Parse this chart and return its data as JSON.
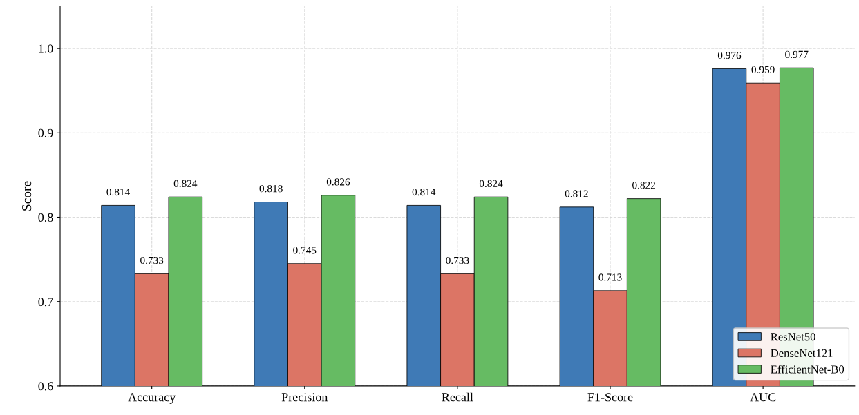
{
  "chart_data": {
    "type": "bar",
    "ylabel": "Score",
    "categories": [
      "Accuracy",
      "Precision",
      "Recall",
      "F1-Score",
      "AUC"
    ],
    "series": [
      {
        "name": "ResNet50",
        "color": "#3f7ab6",
        "values": [
          0.814,
          0.818,
          0.814,
          0.812,
          0.976
        ]
      },
      {
        "name": "DenseNet121",
        "color": "#dc7565",
        "values": [
          0.733,
          0.745,
          0.733,
          0.713,
          0.959
        ]
      },
      {
        "name": "EfficientNet-B0",
        "color": "#66bb63",
        "values": [
          0.824,
          0.826,
          0.824,
          0.822,
          0.977
        ]
      }
    ],
    "ylim": [
      0.6,
      1.05
    ],
    "yticks": [
      0.6,
      0.7,
      0.8,
      0.9,
      {
        "value": 1,
        "label": "1.0"
      }
    ],
    "data_labels": true,
    "grid": true,
    "legend": "bottom right"
  }
}
